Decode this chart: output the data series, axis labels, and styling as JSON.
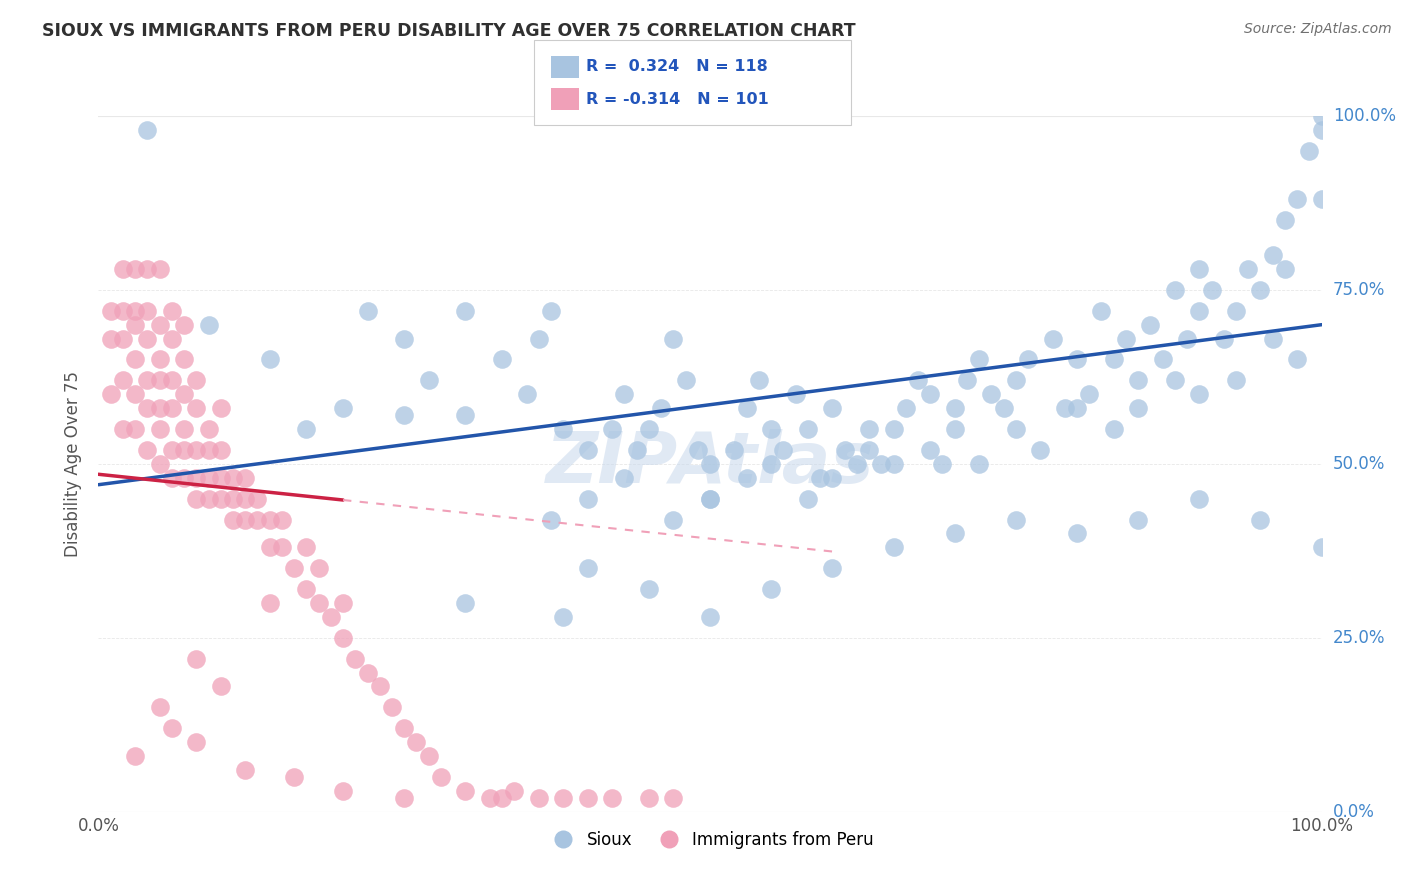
{
  "title": "SIOUX VS IMMIGRANTS FROM PERU DISABILITY AGE OVER 75 CORRELATION CHART",
  "source": "Source: ZipAtlas.com",
  "ylabel": "Disability Age Over 75",
  "xlim": [
    0.0,
    1.0
  ],
  "ylim": [
    0.0,
    1.0
  ],
  "ytick_positions": [
    0.0,
    0.25,
    0.5,
    0.75,
    1.0
  ],
  "ytick_labels": [
    "0.0%",
    "25.0%",
    "50.0%",
    "75.0%",
    "100.0%"
  ],
  "sioux_color": "#a8c4e0",
  "peru_color": "#f0a0b8",
  "sioux_line_color": "#2255aa",
  "peru_line_color": "#cc2244",
  "watermark": "ZIPAtlas",
  "background_color": "#ffffff",
  "grid_color": "#e8e8e8",
  "sioux_R": 0.324,
  "sioux_N": 118,
  "peru_R": -0.314,
  "peru_N": 101,
  "sioux_line_y0": 0.47,
  "sioux_line_y1": 0.7,
  "peru_line_y0": 0.485,
  "peru_line_y1": 0.3,
  "sioux_x": [
    0.04,
    0.09,
    0.14,
    0.17,
    0.2,
    0.22,
    0.25,
    0.25,
    0.27,
    0.3,
    0.3,
    0.33,
    0.35,
    0.36,
    0.37,
    0.38,
    0.4,
    0.42,
    0.43,
    0.44,
    0.45,
    0.46,
    0.47,
    0.48,
    0.49,
    0.5,
    0.5,
    0.52,
    0.53,
    0.54,
    0.55,
    0.56,
    0.57,
    0.58,
    0.59,
    0.6,
    0.61,
    0.62,
    0.63,
    0.64,
    0.65,
    0.66,
    0.67,
    0.68,
    0.69,
    0.7,
    0.71,
    0.72,
    0.73,
    0.74,
    0.75,
    0.76,
    0.78,
    0.79,
    0.8,
    0.81,
    0.82,
    0.83,
    0.84,
    0.85,
    0.86,
    0.87,
    0.88,
    0.89,
    0.9,
    0.9,
    0.91,
    0.92,
    0.93,
    0.94,
    0.95,
    0.96,
    0.97,
    0.97,
    0.98,
    0.99,
    1.0,
    1.0,
    1.0,
    0.37,
    0.4,
    0.43,
    0.47,
    0.5,
    0.53,
    0.55,
    0.58,
    0.6,
    0.63,
    0.65,
    0.68,
    0.7,
    0.72,
    0.75,
    0.77,
    0.8,
    0.83,
    0.85,
    0.88,
    0.9,
    0.93,
    0.96,
    0.98,
    0.38,
    0.45,
    0.5,
    0.55,
    0.6,
    0.65,
    0.7,
    0.75,
    0.8,
    0.85,
    0.9,
    0.95,
    1.0,
    0.3,
    0.4
  ],
  "sioux_y": [
    0.98,
    0.7,
    0.65,
    0.55,
    0.58,
    0.72,
    0.57,
    0.68,
    0.62,
    0.57,
    0.72,
    0.65,
    0.6,
    0.68,
    0.72,
    0.55,
    0.52,
    0.55,
    0.6,
    0.52,
    0.55,
    0.58,
    0.68,
    0.62,
    0.52,
    0.5,
    0.45,
    0.52,
    0.58,
    0.62,
    0.55,
    0.52,
    0.6,
    0.55,
    0.48,
    0.58,
    0.52,
    0.5,
    0.55,
    0.5,
    0.55,
    0.58,
    0.62,
    0.6,
    0.5,
    0.58,
    0.62,
    0.65,
    0.6,
    0.58,
    0.62,
    0.65,
    0.68,
    0.58,
    0.65,
    0.6,
    0.72,
    0.65,
    0.68,
    0.62,
    0.7,
    0.65,
    0.75,
    0.68,
    0.72,
    0.78,
    0.75,
    0.68,
    0.72,
    0.78,
    0.75,
    0.8,
    0.85,
    0.78,
    0.88,
    0.95,
    0.88,
    0.98,
    1.0,
    0.42,
    0.45,
    0.48,
    0.42,
    0.45,
    0.48,
    0.5,
    0.45,
    0.48,
    0.52,
    0.5,
    0.52,
    0.55,
    0.5,
    0.55,
    0.52,
    0.58,
    0.55,
    0.58,
    0.62,
    0.6,
    0.62,
    0.68,
    0.65,
    0.28,
    0.32,
    0.28,
    0.32,
    0.35,
    0.38,
    0.4,
    0.42,
    0.4,
    0.42,
    0.45,
    0.42,
    0.38,
    0.3,
    0.35
  ],
  "peru_x": [
    0.01,
    0.01,
    0.01,
    0.02,
    0.02,
    0.02,
    0.02,
    0.02,
    0.03,
    0.03,
    0.03,
    0.03,
    0.03,
    0.03,
    0.04,
    0.04,
    0.04,
    0.04,
    0.04,
    0.04,
    0.05,
    0.05,
    0.05,
    0.05,
    0.05,
    0.05,
    0.05,
    0.06,
    0.06,
    0.06,
    0.06,
    0.06,
    0.06,
    0.07,
    0.07,
    0.07,
    0.07,
    0.07,
    0.07,
    0.08,
    0.08,
    0.08,
    0.08,
    0.08,
    0.09,
    0.09,
    0.09,
    0.09,
    0.1,
    0.1,
    0.1,
    0.1,
    0.11,
    0.11,
    0.11,
    0.12,
    0.12,
    0.12,
    0.13,
    0.13,
    0.14,
    0.14,
    0.15,
    0.15,
    0.16,
    0.17,
    0.17,
    0.18,
    0.18,
    0.19,
    0.2,
    0.2,
    0.21,
    0.22,
    0.23,
    0.24,
    0.25,
    0.26,
    0.27,
    0.28,
    0.3,
    0.32,
    0.33,
    0.34,
    0.36,
    0.38,
    0.4,
    0.42,
    0.45,
    0.47,
    0.14,
    0.08,
    0.1,
    0.05,
    0.03,
    0.06,
    0.08,
    0.12,
    0.16,
    0.2,
    0.25
  ],
  "peru_y": [
    0.6,
    0.68,
    0.72,
    0.55,
    0.62,
    0.68,
    0.72,
    0.78,
    0.55,
    0.6,
    0.65,
    0.7,
    0.72,
    0.78,
    0.52,
    0.58,
    0.62,
    0.68,
    0.72,
    0.78,
    0.5,
    0.55,
    0.58,
    0.62,
    0.65,
    0.7,
    0.78,
    0.48,
    0.52,
    0.58,
    0.62,
    0.68,
    0.72,
    0.48,
    0.52,
    0.55,
    0.6,
    0.65,
    0.7,
    0.45,
    0.48,
    0.52,
    0.58,
    0.62,
    0.45,
    0.48,
    0.52,
    0.55,
    0.45,
    0.48,
    0.52,
    0.58,
    0.42,
    0.45,
    0.48,
    0.42,
    0.45,
    0.48,
    0.42,
    0.45,
    0.38,
    0.42,
    0.38,
    0.42,
    0.35,
    0.32,
    0.38,
    0.3,
    0.35,
    0.28,
    0.25,
    0.3,
    0.22,
    0.2,
    0.18,
    0.15,
    0.12,
    0.1,
    0.08,
    0.05,
    0.03,
    0.02,
    0.02,
    0.03,
    0.02,
    0.02,
    0.02,
    0.02,
    0.02,
    0.02,
    0.3,
    0.22,
    0.18,
    0.15,
    0.08,
    0.12,
    0.1,
    0.06,
    0.05,
    0.03,
    0.02
  ]
}
